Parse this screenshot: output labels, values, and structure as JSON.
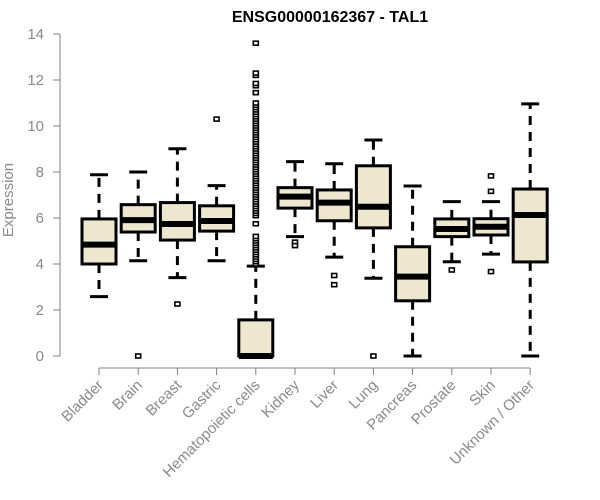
{
  "chart_data": {
    "type": "boxplot",
    "title": "ENSG00000162367 - TAL1",
    "xlabel": "",
    "ylabel": "Expression",
    "ylim": [
      0,
      14
    ],
    "yticks": [
      0,
      2,
      4,
      6,
      8,
      10,
      12,
      14
    ],
    "grid": false,
    "colors": {
      "box_fill": "#ede7d0",
      "box_stroke": "#000000",
      "axis": "#808080",
      "tick_text": "#8a8a8a"
    },
    "categories": [
      "Bladder",
      "Brain",
      "Breast",
      "Gastric",
      "Hematopoietic cells",
      "Kidney",
      "Liver",
      "Lung",
      "Pancreas",
      "Prostate",
      "Skin",
      "Unknown / Other"
    ],
    "boxes": [
      {
        "name": "Bladder",
        "whisker_low": 2.58,
        "q1": 4.0,
        "median": 4.84,
        "q3": 5.96,
        "whisker_high": 7.88,
        "outliers": []
      },
      {
        "name": "Brain",
        "whisker_low": 4.14,
        "q1": 5.39,
        "median": 5.91,
        "q3": 6.58,
        "whisker_high": 8.0,
        "outliers": [
          0.0
        ]
      },
      {
        "name": "Breast",
        "whisker_low": 3.41,
        "q1": 5.04,
        "median": 5.74,
        "q3": 6.67,
        "whisker_high": 9.01,
        "outliers": [
          2.26
        ]
      },
      {
        "name": "Gastric",
        "whisker_low": 4.14,
        "q1": 5.43,
        "median": 5.87,
        "q3": 6.53,
        "whisker_high": 7.41,
        "outliers": [
          10.3
        ]
      },
      {
        "name": "Hematopoietic cells",
        "whisker_low": 0.0,
        "q1": 0.0,
        "median": 0.0,
        "q3": 1.57,
        "whisker_high": 3.91,
        "outliers": [
          4.0,
          4.1,
          4.2,
          4.3,
          4.4,
          4.5,
          4.6,
          4.7,
          4.8,
          4.9,
          5.0,
          5.1,
          5.2,
          5.75,
          6.1,
          6.2,
          6.3,
          6.4,
          6.5,
          6.6,
          6.7,
          6.8,
          6.9,
          7.0,
          7.1,
          7.2,
          7.3,
          7.4,
          7.5,
          7.6,
          7.7,
          7.8,
          7.9,
          8.0,
          8.1,
          8.2,
          8.3,
          8.4,
          8.5,
          8.6,
          8.7,
          8.8,
          8.9,
          9.0,
          9.1,
          9.2,
          9.3,
          9.4,
          9.5,
          9.6,
          9.7,
          9.8,
          9.9,
          10.0,
          10.1,
          10.2,
          10.3,
          10.4,
          10.5,
          10.6,
          10.7,
          10.8,
          10.9,
          11.0,
          11.45,
          11.75,
          11.85,
          12.2,
          12.3,
          13.6
        ]
      },
      {
        "name": "Kidney",
        "whisker_low": 5.19,
        "q1": 6.43,
        "median": 6.93,
        "q3": 7.32,
        "whisker_high": 8.45,
        "outliers": [
          4.95,
          4.8
        ]
      },
      {
        "name": "Liver",
        "whisker_low": 4.3,
        "q1": 5.88,
        "median": 6.67,
        "q3": 7.22,
        "whisker_high": 8.36,
        "outliers": [
          3.5,
          3.1
        ]
      },
      {
        "name": "Lung",
        "whisker_low": 3.38,
        "q1": 5.57,
        "median": 6.49,
        "q3": 8.27,
        "whisker_high": 9.39,
        "outliers": [
          0.0
        ]
      },
      {
        "name": "Pancreas",
        "whisker_low": 0.0,
        "q1": 2.4,
        "median": 3.45,
        "q3": 4.75,
        "whisker_high": 7.39,
        "outliers": []
      },
      {
        "name": "Prostate",
        "whisker_low": 4.1,
        "q1": 5.19,
        "median": 5.52,
        "q3": 5.96,
        "whisker_high": 6.71,
        "outliers": [
          3.74
        ]
      },
      {
        "name": "Skin",
        "whisker_low": 4.43,
        "q1": 5.26,
        "median": 5.62,
        "q3": 5.97,
        "whisker_high": 6.71,
        "outliers": [
          7.83,
          7.16,
          3.67
        ]
      },
      {
        "name": "Unknown / Other",
        "whisker_low": 0.0,
        "q1": 4.09,
        "median": 6.13,
        "q3": 7.26,
        "whisker_high": 10.96,
        "outliers": []
      }
    ]
  }
}
